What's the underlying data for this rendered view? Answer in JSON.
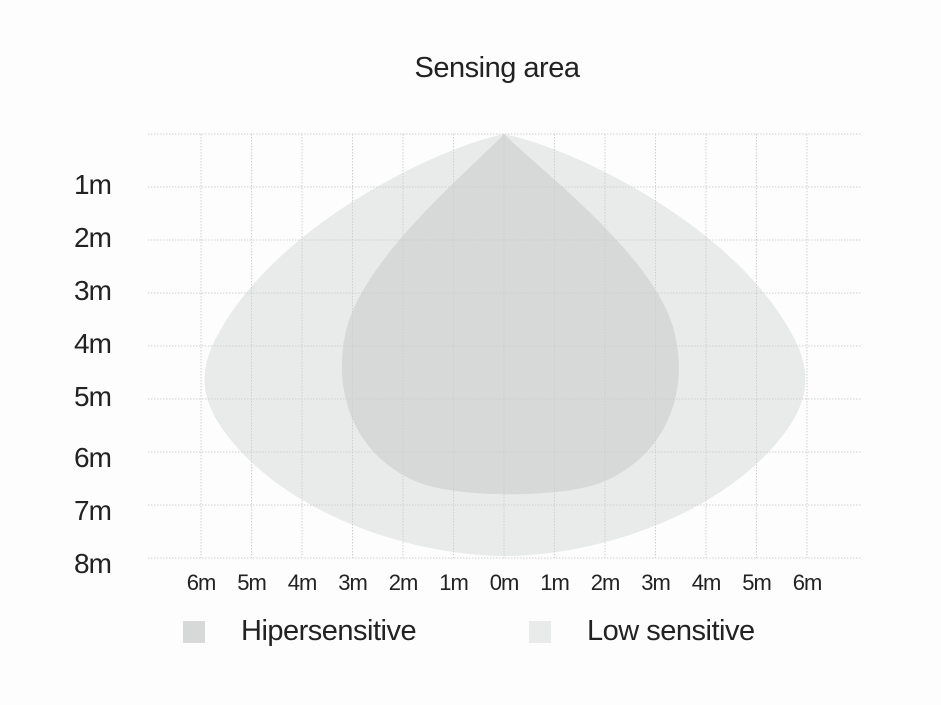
{
  "title": "Sensing area",
  "y_labels": [
    "1m",
    "2m",
    "3m",
    "4m",
    "5m",
    "6m",
    "7m",
    "8m"
  ],
  "x_labels": [
    "6m",
    "5m",
    "4m",
    "3m",
    "2m",
    "1m",
    "0m",
    "1m",
    "2m",
    "3m",
    "4m",
    "5m",
    "6m"
  ],
  "legend": [
    {
      "label": "Hipersensitive",
      "color": "#d6d9d8"
    },
    {
      "label": "Low sensitive",
      "color": "#e8ebea"
    }
  ],
  "colors": {
    "grid": "#cfcfcf",
    "background": "#fdfdfd"
  }
}
